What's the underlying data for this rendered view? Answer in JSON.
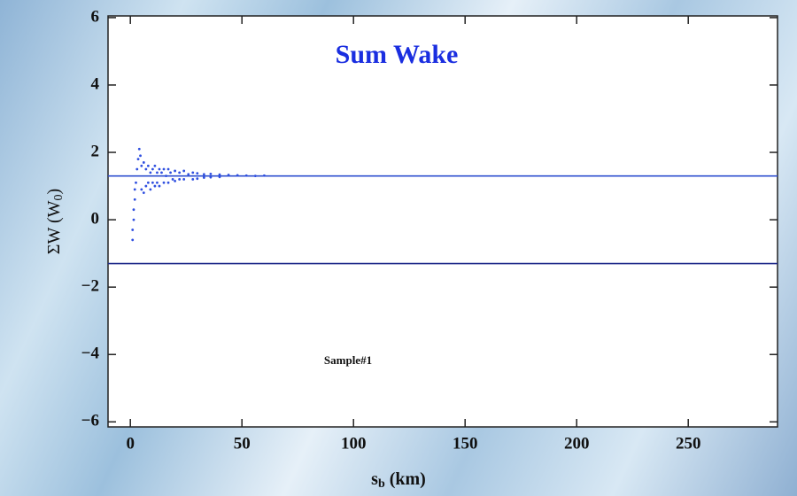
{
  "chart_data": {
    "type": "scatter",
    "title": "Sum Wake",
    "annotation": "Sample#1",
    "x_label": [
      "s",
      "b",
      " (km)"
    ],
    "y_label": [
      "ΣW (W",
      "0",
      ")"
    ],
    "xlim": [
      -10,
      290
    ],
    "ylim": [
      -6.15,
      6.05
    ],
    "xticks": [
      0,
      50,
      100,
      150,
      200,
      250
    ],
    "yticks": [
      {
        "value": -6,
        "label": "−6"
      },
      {
        "value": -4,
        "label": "−4"
      },
      {
        "value": -2,
        "label": "−2"
      },
      0,
      2,
      4,
      6
    ],
    "color": "#2f4fe0",
    "hlines": [
      {
        "value": 1.3,
        "color": "#2f4fcf"
      },
      {
        "value": -1.3,
        "color": "#1f2a8a"
      }
    ],
    "x": [
      1,
      1,
      1.5,
      1.5,
      2,
      2,
      2.5,
      3,
      3.5,
      4,
      4.5,
      5,
      5,
      6,
      6,
      7,
      7,
      8,
      8,
      9,
      9,
      10,
      10,
      11,
      11,
      12,
      12,
      13,
      13,
      14,
      15,
      15,
      16,
      17,
      17,
      18,
      19,
      20,
      20,
      22,
      22,
      24,
      24,
      26,
      28,
      28,
      30,
      30,
      33,
      33,
      36,
      36,
      40,
      40,
      44,
      48,
      52,
      56,
      60
    ],
    "values": [
      -0.6,
      -0.3,
      0,
      0.3,
      0.6,
      0.9,
      1.1,
      1.5,
      1.8,
      2.1,
      1.9,
      1.6,
      0.9,
      1.7,
      0.8,
      1.5,
      1.0,
      1.6,
      1.1,
      1.4,
      0.9,
      1.5,
      1.1,
      1.6,
      1.0,
      1.4,
      1.1,
      1.5,
      1.0,
      1.4,
      1.5,
      1.1,
      1.3,
      1.5,
      1.1,
      1.4,
      1.2,
      1.45,
      1.15,
      1.4,
      1.2,
      1.45,
      1.2,
      1.35,
      1.4,
      1.2,
      1.38,
      1.22,
      1.35,
      1.25,
      1.36,
      1.26,
      1.34,
      1.27,
      1.33,
      1.32,
      1.31,
      1.3,
      1.31
    ]
  }
}
